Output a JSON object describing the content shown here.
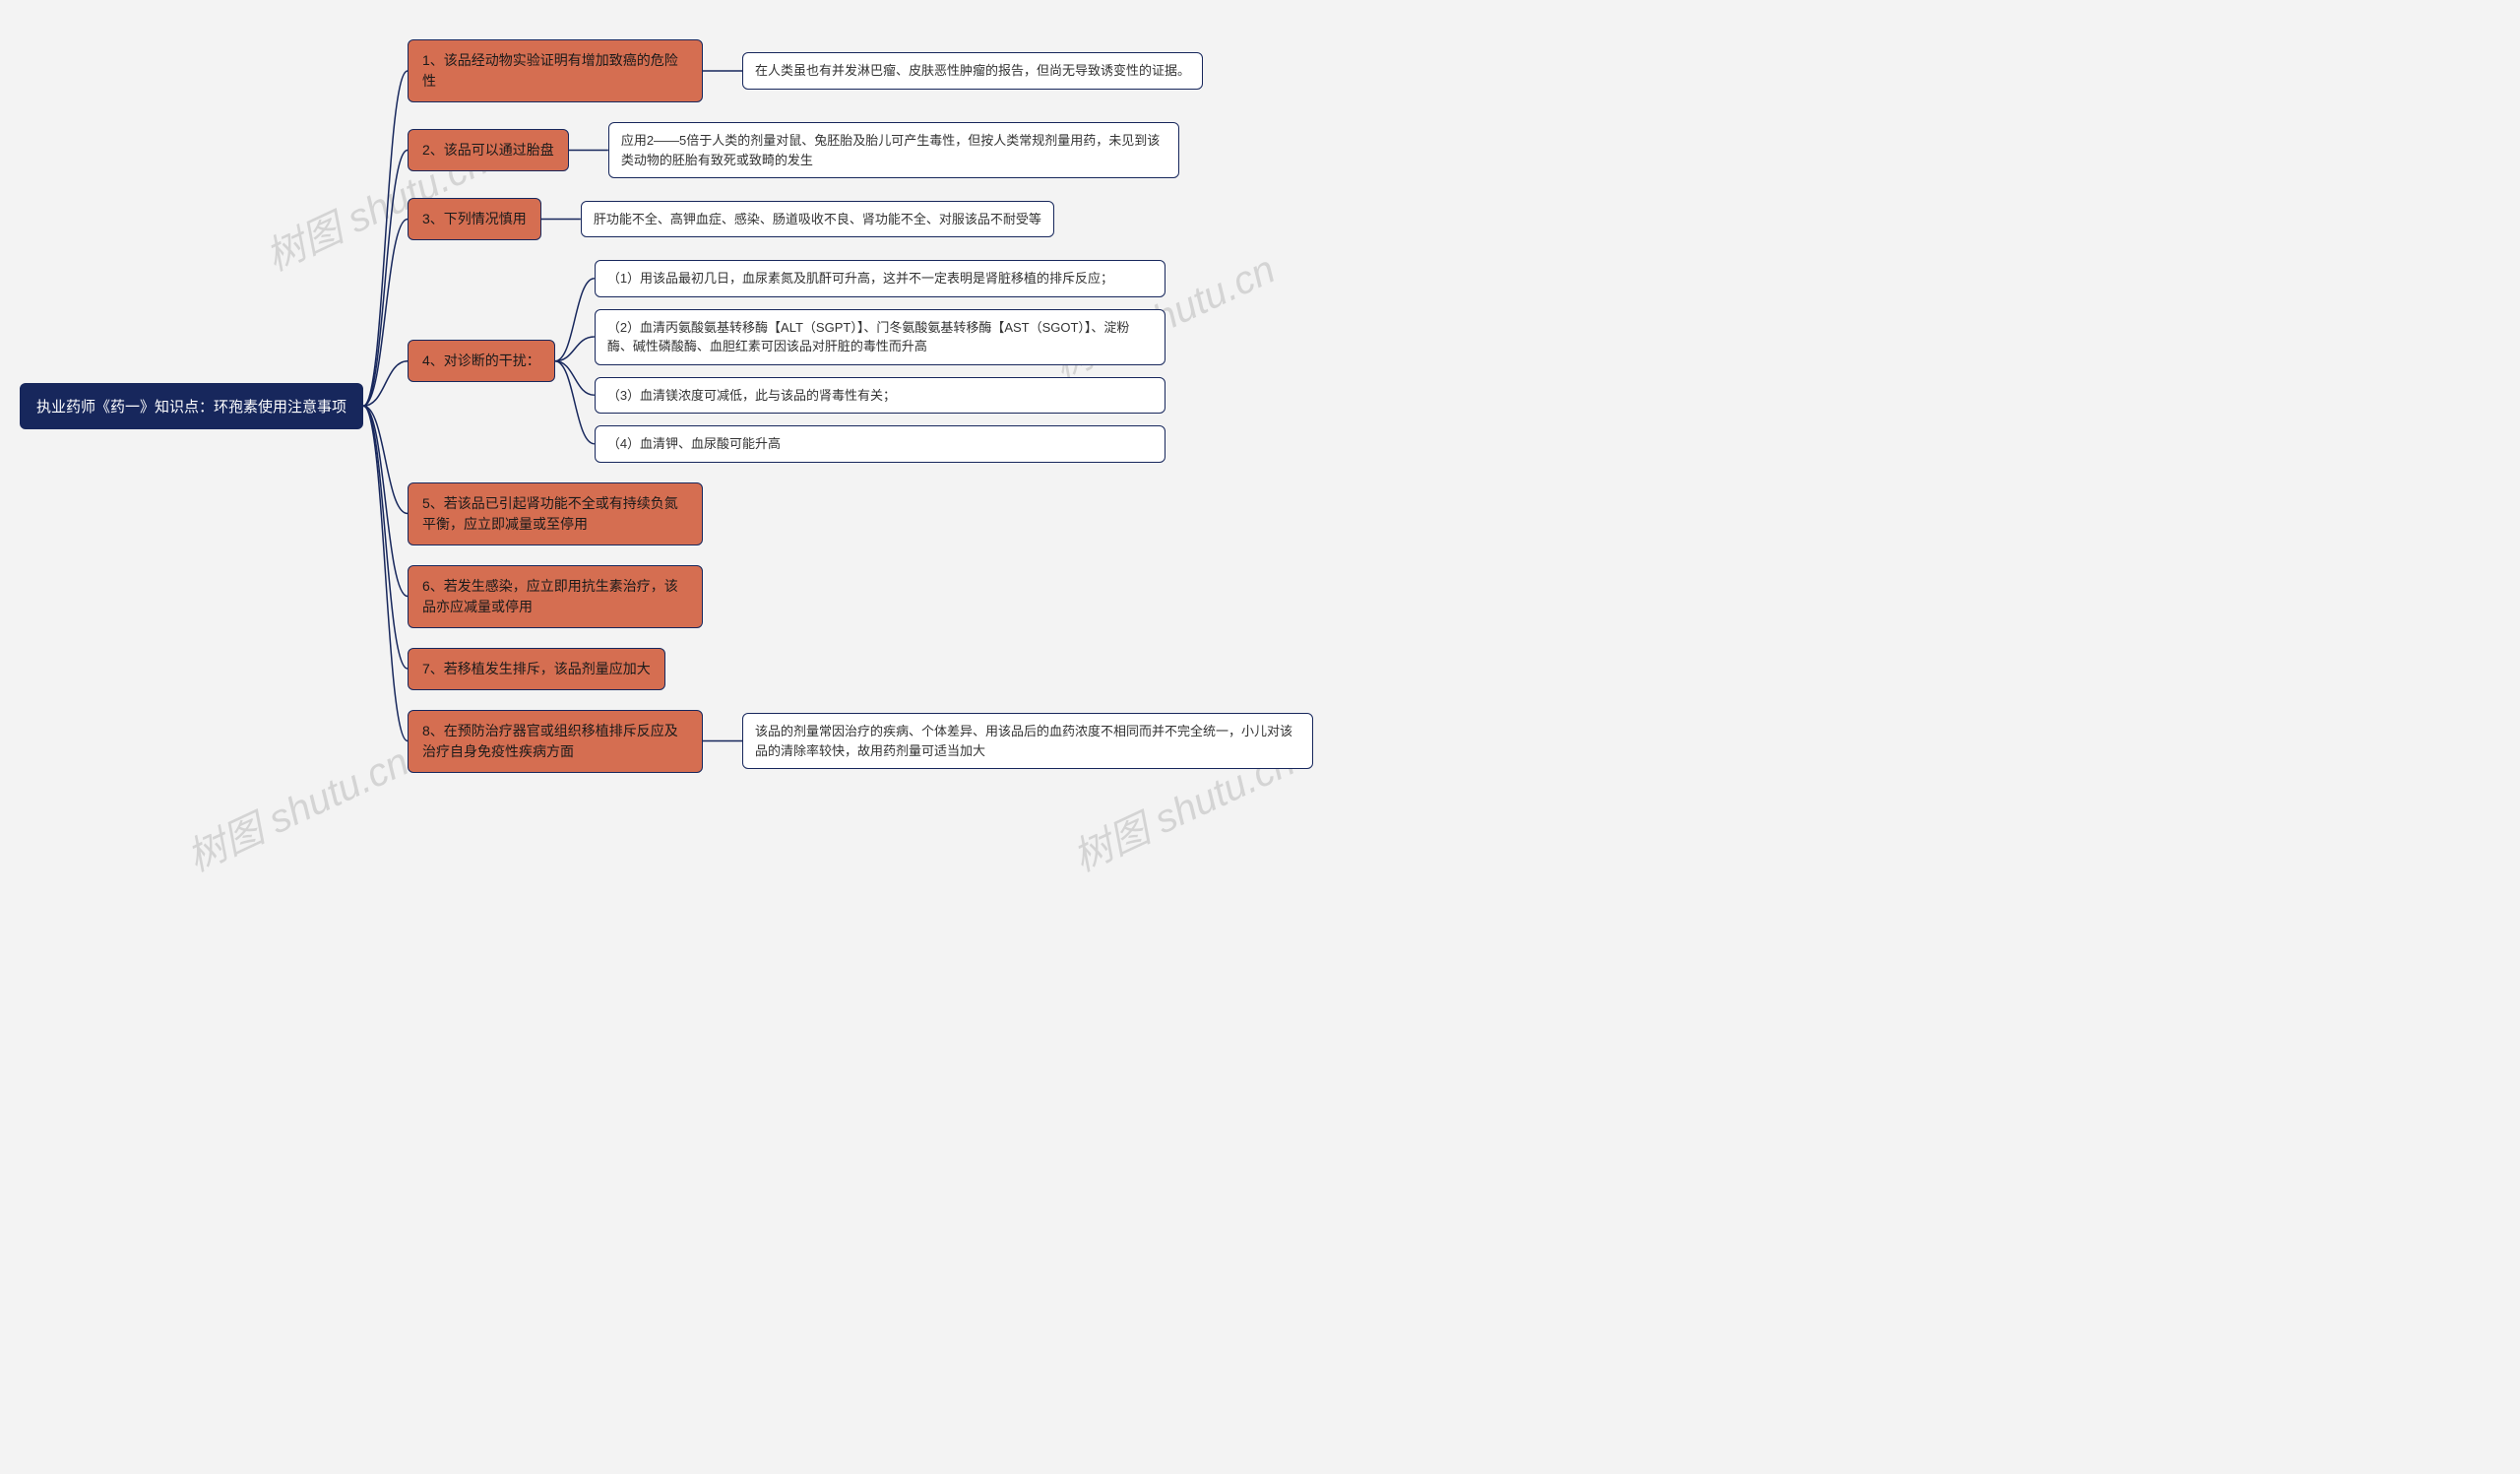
{
  "diagram": {
    "type": "mindmap",
    "background_color": "#f3f3f3",
    "root_color": "#17275c",
    "root_text_color": "#ffffff",
    "branch_color": "#d56e51",
    "leaf_color": "#ffffff",
    "border_color": "#17275c",
    "connector_color": "#17275c",
    "root_fontsize": 15,
    "branch_fontsize": 14,
    "leaf_fontsize": 13,
    "border_radius": 6,
    "watermark_text": "树图 shutu.cn",
    "watermark_color": "#888888",
    "watermark_opacity": 0.28,
    "root": {
      "text": "执业药师《药一》知识点：环孢素使用注意事项"
    },
    "branches": [
      {
        "label": "1、该品经动物实验证明有增加致癌的危险性",
        "children": [
          {
            "text": "在人类虽也有并发淋巴瘤、皮肤恶性肿瘤的报告，但尚无导致诱变性的证据。"
          }
        ]
      },
      {
        "label": "2、该品可以通过胎盘",
        "children": [
          {
            "text": "应用2——5倍于人类的剂量对鼠、兔胚胎及胎儿可产生毒性，但按人类常规剂量用药，未见到该类动物的胚胎有致死或致畸的发生"
          }
        ]
      },
      {
        "label": "3、下列情况慎用",
        "children": [
          {
            "text": "肝功能不全、高钾血症、感染、肠道吸收不良、肾功能不全、对服该品不耐受等"
          }
        ]
      },
      {
        "label": "4、对诊断的干扰：",
        "children": [
          {
            "text": "（1）用该品最初几日，血尿素氮及肌酐可升高，这并不一定表明是肾脏移植的排斥反应；"
          },
          {
            "text": "（2）血清丙氨酸氨基转移酶【ALT（SGPT）】、门冬氨酸氨基转移酶【AST（SGOT）】、淀粉酶、碱性磷酸酶、血胆红素可因该品对肝脏的毒性而升高"
          },
          {
            "text": "（3）血清镁浓度可减低，此与该品的肾毒性有关；"
          },
          {
            "text": "（4）血清钾、血尿酸可能升高"
          }
        ]
      },
      {
        "label": "5、若该品已引起肾功能不全或有持续负氮平衡，应立即减量或至停用",
        "children": []
      },
      {
        "label": "6、若发生感染，应立即用抗生素治疗，该品亦应减量或停用",
        "children": []
      },
      {
        "label": "7、若移植发生排斥，该品剂量应加大",
        "children": []
      },
      {
        "label": "8、在预防治疗器官或组织移植排斥反应及治疗自身免疫性疾病方面",
        "children": [
          {
            "text": "该品的剂量常因治疗的疾病、个体差异、用该品后的血药浓度不相同而并不完全统一，小儿对该品的清除率较快，故用药剂量可适当加大"
          }
        ]
      }
    ]
  }
}
